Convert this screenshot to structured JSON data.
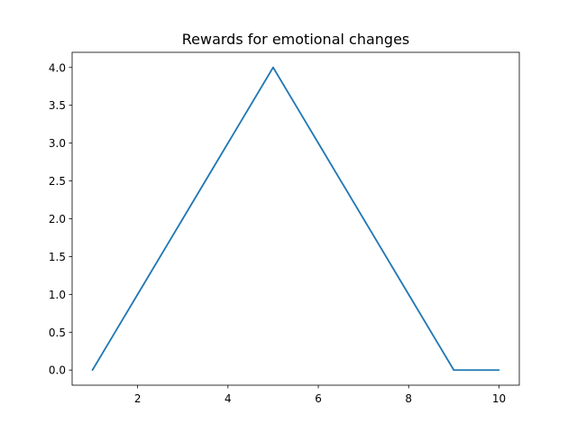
{
  "chart_data": {
    "type": "line",
    "title": "Rewards for emotional changes",
    "xlabel": "",
    "ylabel": "",
    "xlim": [
      0.55,
      10.45
    ],
    "ylim": [
      -0.2,
      4.2
    ],
    "x_ticks": [
      2,
      4,
      6,
      8,
      10
    ],
    "x_tick_labels": [
      "2",
      "4",
      "6",
      "8",
      "10"
    ],
    "y_ticks": [
      0.0,
      0.5,
      1.0,
      1.5,
      2.0,
      2.5,
      3.0,
      3.5,
      4.0
    ],
    "y_tick_labels": [
      "0.0",
      "0.5",
      "1.0",
      "1.5",
      "2.0",
      "2.5",
      "3.0",
      "3.5",
      "4.0"
    ],
    "grid": false,
    "series": [
      {
        "color": "#1f77b4",
        "x": [
          1,
          2,
          3,
          4,
          5,
          6,
          7,
          8,
          9,
          10
        ],
        "values": [
          0,
          1,
          2,
          3,
          4,
          3,
          2,
          1,
          0,
          0
        ]
      }
    ]
  }
}
